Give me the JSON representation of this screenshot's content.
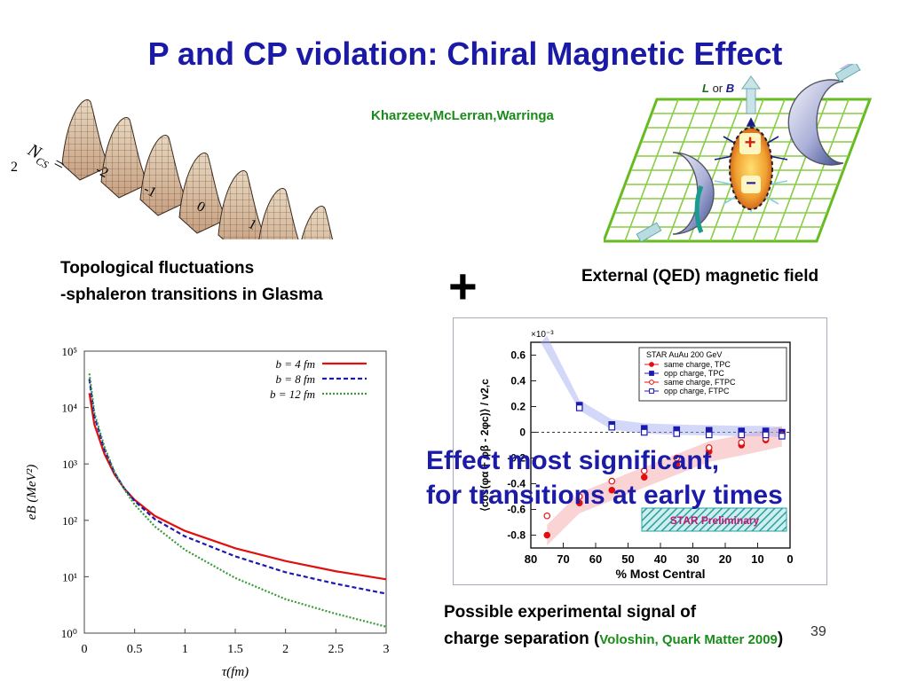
{
  "slide": {
    "title": "P and CP violation: Chiral Magnetic Effect",
    "authors": "Kharzeev,McLerran,Warringa",
    "page_number": "39"
  },
  "sphaleron": {
    "ncs_label": "N",
    "ncs_sub": "CS",
    "ncs_eq": " =",
    "ticks": [
      "2",
      "-2",
      "-1",
      "0",
      "1"
    ],
    "caption_line1": "Topological fluctuations",
    "caption_line2": "-sphaleron transitions in Glasma"
  },
  "plus_sign": "+",
  "collision": {
    "axis_label_L": "L",
    "axis_label_or": " or ",
    "axis_label_B": "B",
    "charge_plus": "+",
    "charge_minus": "−",
    "caption": "External (QED) magnetic field"
  },
  "effect_text": {
    "line1": "Effect most significant,",
    "line2": "for transitions at early times"
  },
  "signal_caption": {
    "line1": "Possible experimental signal of",
    "line2_prefix": "charge separation (",
    "reference": "Voloshin, Quark Matter 2009",
    "line2_suffix": ")"
  },
  "chart_data": [
    {
      "type": "line",
      "xlabel": "τ(fm)",
      "ylabel": "eB (MeV²)",
      "xlim": [
        0,
        3
      ],
      "ylim": [
        1,
        100000
      ],
      "yscale": "log",
      "x_ticks": [
        "0",
        "0.5",
        "1",
        "1.5",
        "2",
        "2.5",
        "3"
      ],
      "y_ticks": [
        "10⁰",
        "10¹",
        "10²",
        "10³",
        "10⁴",
        "10⁵"
      ],
      "legend_position": "top-right",
      "series": [
        {
          "name": "b = 4 fm",
          "color": "#e01010",
          "style": "solid",
          "x": [
            0.05,
            0.1,
            0.2,
            0.3,
            0.4,
            0.5,
            0.7,
            1.0,
            1.5,
            2.0,
            2.5,
            3.0
          ],
          "y": [
            18000,
            5000,
            1500,
            650,
            360,
            230,
            120,
            65,
            32,
            19,
            12.5,
            9
          ]
        },
        {
          "name": "b = 8 fm",
          "color": "#1a1ab0",
          "style": "dashed",
          "x": [
            0.05,
            0.1,
            0.2,
            0.3,
            0.4,
            0.5,
            0.7,
            1.0,
            1.5,
            2.0,
            2.5,
            3.0
          ],
          "y": [
            32000,
            7000,
            1800,
            700,
            360,
            220,
            105,
            52,
            23,
            12,
            7.5,
            5
          ]
        },
        {
          "name": "b = 12 fm",
          "color": "#3a9a3a",
          "style": "dotted",
          "x": [
            0.05,
            0.1,
            0.2,
            0.3,
            0.4,
            0.5,
            0.7,
            1.0,
            1.5,
            2.0,
            2.5,
            3.0
          ],
          "y": [
            40000,
            8000,
            2000,
            720,
            350,
            190,
            78,
            30,
            9.5,
            4,
            2.2,
            1.3
          ]
        }
      ]
    },
    {
      "type": "scatter",
      "xlabel": "% Most Central",
      "ylabel": "⟨cos(φα + φβ - 2φc)⟩ / v2,c",
      "y_multiplier": "×10⁻³",
      "xlim": [
        80,
        0
      ],
      "ylim": [
        -0.9,
        0.7
      ],
      "x_ticks": [
        "80",
        "70",
        "60",
        "50",
        "40",
        "30",
        "20",
        "10",
        "0"
      ],
      "y_ticks": [
        "0.6",
        "0.4",
        "0.2",
        "0",
        "-0.2",
        "-0.4",
        "-0.6",
        "-0.8"
      ],
      "legend_position": "top-right",
      "legend_title": "STAR  AuAu 200 GeV",
      "badge": "STAR Preliminary",
      "series": [
        {
          "name": "same charge, TPC",
          "color": "#e01010",
          "marker": "filled-circle",
          "x": [
            75,
            65,
            55,
            45,
            35,
            25,
            15,
            7.5,
            2.5
          ],
          "y": [
            -0.8,
            -0.55,
            -0.45,
            -0.35,
            -0.25,
            -0.15,
            -0.1,
            -0.06,
            -0.03
          ]
        },
        {
          "name": "opp charge, TPC",
          "color": "#1a1ab0",
          "marker": "filled-square",
          "x": [
            65,
            55,
            45,
            35,
            25,
            15,
            7.5,
            2.5
          ],
          "y": [
            0.21,
            0.06,
            0.03,
            0.02,
            0.015,
            0.01,
            0.01,
            0.0
          ]
        },
        {
          "name": "same charge, FTPC",
          "color": "#e01010",
          "marker": "open-circle",
          "x": [
            75,
            65,
            55,
            45,
            35,
            25,
            15,
            7.5,
            2.5
          ],
          "y": [
            -0.65,
            -0.5,
            -0.38,
            -0.3,
            -0.2,
            -0.12,
            -0.08,
            -0.05,
            -0.02
          ]
        },
        {
          "name": "opp charge, FTPC",
          "color": "#1a1ab0",
          "marker": "open-square",
          "x": [
            65,
            55,
            45,
            35,
            25,
            15,
            7.5,
            2.5
          ],
          "y": [
            0.19,
            0.04,
            0.0,
            -0.01,
            -0.02,
            -0.02,
            -0.02,
            -0.03
          ]
        }
      ]
    }
  ]
}
